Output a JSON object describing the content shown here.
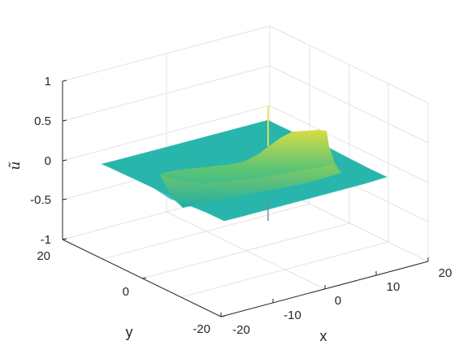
{
  "chart_data": {
    "type": "surface",
    "title": "",
    "xlabel": "x",
    "ylabel": "y",
    "zlabel": "ũ",
    "xlim": [
      -20,
      20
    ],
    "ylim": [
      -20,
      20
    ],
    "zlim": [
      -1,
      1
    ],
    "x_ticks": [
      "-20",
      "-10",
      "0",
      "10",
      "20"
    ],
    "y_ticks": [
      "-20",
      "0",
      "20"
    ],
    "z_ticks": [
      "1",
      "0.5",
      "0",
      "-0.5",
      "-1"
    ],
    "grid": true,
    "box": "3d-grid",
    "colormap": "parula",
    "surface_color_low": "#2db5b0",
    "surface_color_high": "#f0e040",
    "features": [
      {
        "description_value": "baseline",
        "z_approx": 0.0
      },
      {
        "description_value": "ridge-peak",
        "x_approx": 12,
        "y_approx": -5,
        "z_approx": 0.45
      },
      {
        "description_value": "spike",
        "x_approx": 0,
        "y_approx": 0,
        "z_max": 0.7,
        "z_min": -0.75
      }
    ]
  }
}
